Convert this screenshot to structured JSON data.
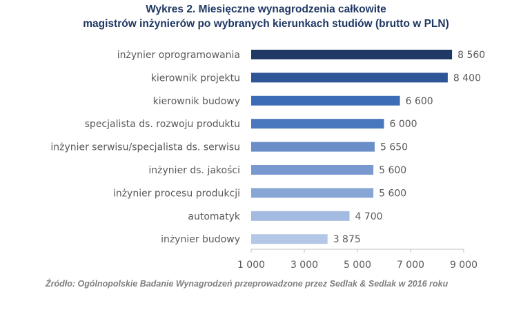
{
  "title_line1": "Wykres 2. Miesięczne wynagrodzenia całkowite",
  "title_line2": "magistrów inżynierów po wybranych kierunkach studiów (brutto w PLN)",
  "source": "Źródło: Ogólnopolskie Badanie Wynagrodzeń przeprowadzone przez Sedlak & Sedlak w 2016 roku",
  "chart_data": {
    "type": "bar",
    "orientation": "horizontal",
    "title": "Wykres 2. Miesięczne wynagrodzenia całkowite magistrów inżynierów po wybranych kierunkach studiów (brutto w PLN)",
    "categories": [
      "inżynier oprogramowania",
      "kierownik projektu",
      "kierownik budowy",
      "specjalista ds. rozwoju produktu",
      "inżynier serwisu/specjalista ds. serwisu",
      "inżynier ds. jakości",
      "inżynier procesu produkcji",
      "automatyk",
      "inżynier budowy"
    ],
    "values": [
      8560,
      8400,
      6600,
      6000,
      5650,
      5600,
      5600,
      4700,
      3875
    ],
    "value_labels": [
      "8 560",
      "8 400",
      "6 600",
      "6 000",
      "5 650",
      "5 600",
      "5 600",
      "4 700",
      "3 875"
    ],
    "bar_colors": [
      "#1f3864",
      "#2e5597",
      "#3d6cb7",
      "#4a78be",
      "#6a8fc8",
      "#7898cf",
      "#88a6d5",
      "#a3bbe0",
      "#b4c7e6"
    ],
    "xlim": [
      1000,
      9000
    ],
    "xticks": [
      1000,
      3000,
      5000,
      7000,
      9000
    ],
    "xtick_labels": [
      "1 000",
      "3 000",
      "5 000",
      "7 000",
      "9 000"
    ],
    "grid": false,
    "legend": "none"
  }
}
